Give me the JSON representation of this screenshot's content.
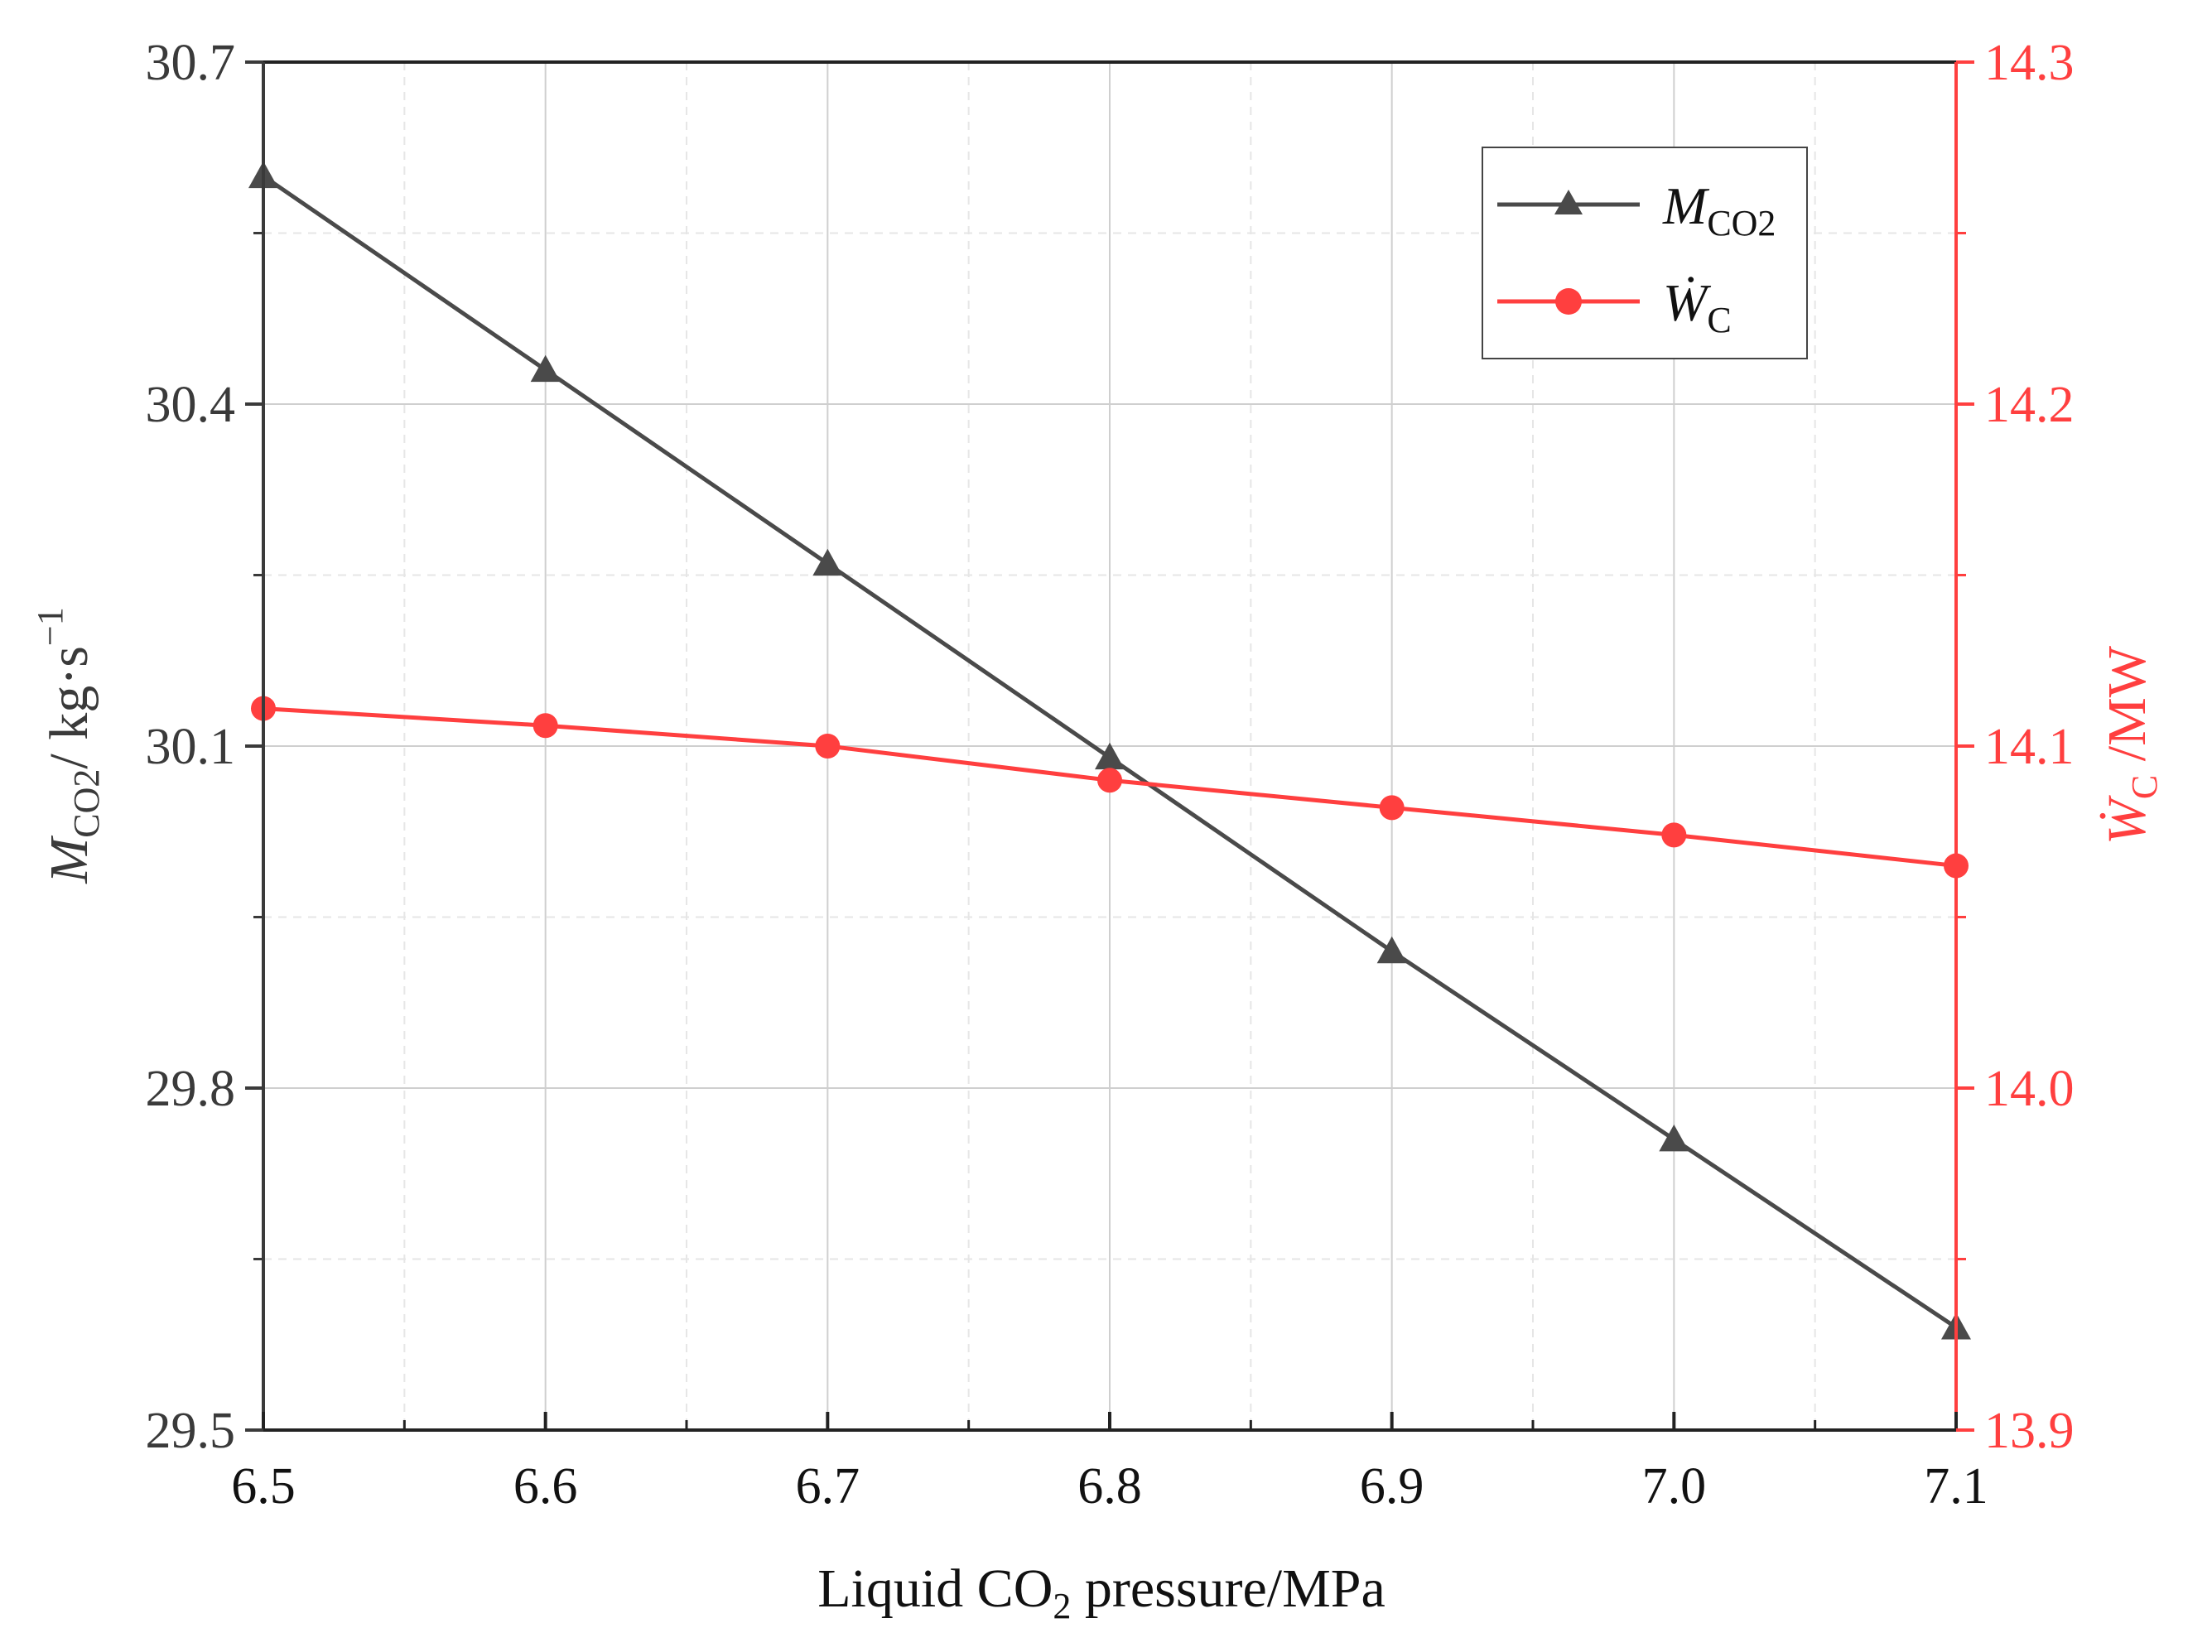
{
  "colors": {
    "series1": "#4a4a4a",
    "series2": "#ff3f3f",
    "axis_left": "#3a3a3a",
    "axis_right": "#ff3f3f",
    "grid_major": "#cfcfcf",
    "grid_minor": "#e6e6e6"
  },
  "chart_data": {
    "type": "line",
    "title": "",
    "x": [
      6.5,
      6.6,
      6.7,
      6.8,
      6.9,
      7.0,
      7.1
    ],
    "xlim": [
      6.5,
      7.1
    ],
    "xticks": [
      "6.5",
      "6.6",
      "6.7",
      "6.8",
      "6.9",
      "7.0",
      "7.1"
    ],
    "xlabel": {
      "main": "Liquid CO",
      "sub": "2",
      "rest": " pressure/MPa"
    },
    "ylim_left": [
      29.5,
      30.7
    ],
    "yticks_left": [
      "29.5",
      "29.8",
      "30.1",
      "30.4",
      "30.7"
    ],
    "ylabel_left": {
      "italic": "M",
      "sub": "CO2",
      "rest": "/ kg·s",
      "sup": "−1"
    },
    "ylim_right": [
      13.9,
      14.3
    ],
    "yticks_right": [
      "13.9",
      "14.0",
      "14.1",
      "14.2",
      "14.3"
    ],
    "ylabel_right": {
      "italic": "Ẇ",
      "sub": "C",
      "rest": " /MW"
    },
    "grid": true,
    "legend_position": "top-right",
    "series": [
      {
        "name": "M_CO2",
        "label_italic": "M",
        "label_sub": "CO2",
        "axis": "left",
        "marker": "triangle",
        "values": [
          30.6,
          30.43,
          30.26,
          30.09,
          29.92,
          29.755,
          29.59
        ]
      },
      {
        "name": "W_C",
        "label_italic": "Ẇ",
        "label_sub": "C",
        "axis": "right",
        "marker": "circle",
        "values": [
          14.111,
          14.106,
          14.1,
          14.09,
          14.082,
          14.074,
          14.065
        ]
      }
    ]
  }
}
